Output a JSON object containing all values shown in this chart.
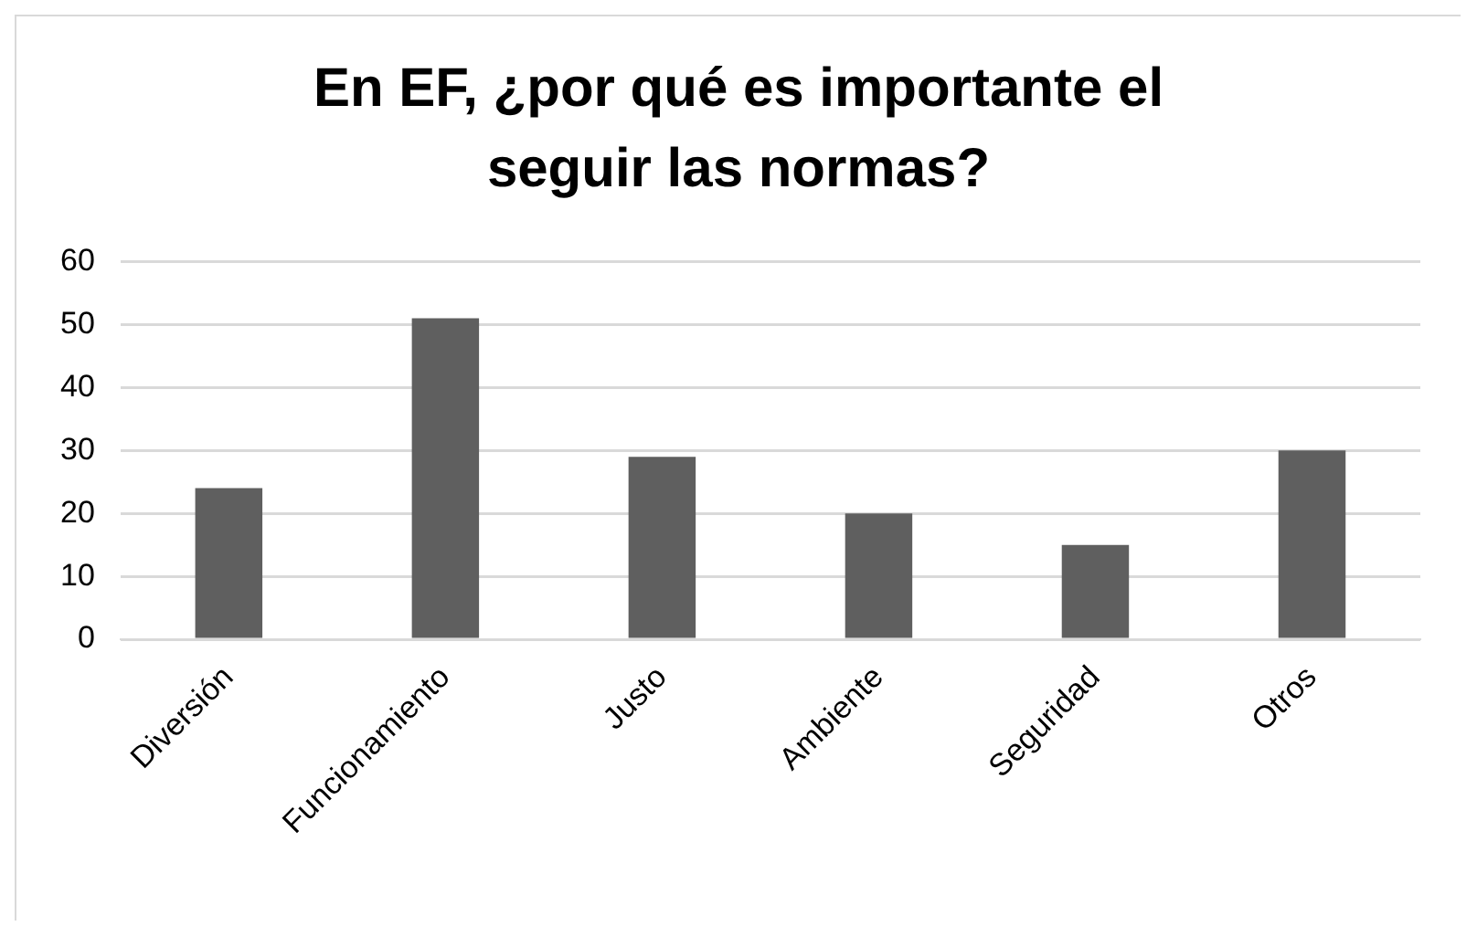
{
  "chart_data": {
    "type": "bar",
    "title": "En EF, ¿por qué es importante el seguir las normas?",
    "categories": [
      "Diversión",
      "Funcionamiento",
      "Justo",
      "Ambiente",
      "Seguridad",
      "Otros"
    ],
    "values": [
      24,
      51,
      29,
      20,
      15,
      30
    ],
    "color": "#5f5f5f",
    "ylim": [
      0,
      60
    ],
    "yticks": [
      0,
      10,
      20,
      30,
      40,
      50,
      60
    ],
    "grid": "y",
    "legend": false
  }
}
